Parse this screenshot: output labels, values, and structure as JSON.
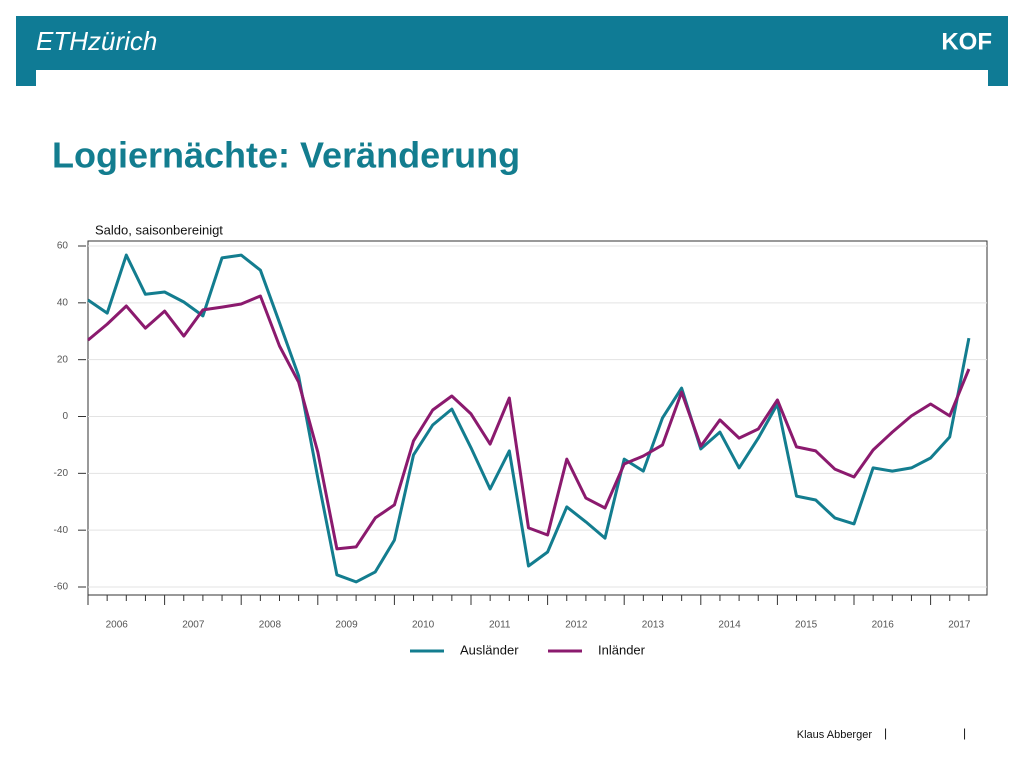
{
  "header": {
    "logo_left": "ETHzürich",
    "logo_right": "KOF"
  },
  "title": "Logiernächte: Veränderung",
  "chart_data": {
    "type": "line",
    "subtitle": "Saldo, saisonbereinigt",
    "year_labels": [
      "2006",
      "2007",
      "2008",
      "2009",
      "2010",
      "2011",
      "2012",
      "2013",
      "2014",
      "2015",
      "2016",
      "2017"
    ],
    "ylim": [
      -62,
      62
    ],
    "yticks": [
      -60,
      -40,
      -20,
      0,
      20,
      40,
      60
    ],
    "grid": true,
    "legend": "bottom",
    "series": [
      {
        "name": "Ausländer",
        "color": "#137d8f",
        "values": [
          41,
          36.4,
          56.8,
          43,
          43.8,
          40.3,
          35.4,
          55.8,
          56.8,
          51.5,
          33,
          14.3,
          -21.6,
          -55.7,
          -58.2,
          -54.7,
          -43.5,
          -13.5,
          -3,
          2.6,
          -11,
          -25.5,
          -12.1,
          -52.6,
          -47.7,
          -31.8,
          -37.1,
          -42.8,
          -15,
          -19.2,
          -0.5,
          10,
          -11.4,
          -5.5,
          -18.1,
          -7.6,
          4.4,
          -28,
          -29.4,
          -35.7,
          -37.8,
          -18.1,
          -19.2,
          -18.1,
          -14.6,
          -7.2,
          27.6
        ]
      },
      {
        "name": "Inländer",
        "color": "#8b1a6e",
        "values": [
          26.9,
          32.5,
          38.9,
          31.1,
          37.1,
          28.3,
          37.5,
          38.5,
          39.6,
          42.4,
          24.8,
          12.1,
          -12.5,
          -46.6,
          -45.9,
          -35.7,
          -31.1,
          -8.6,
          2.3,
          7.2,
          0.9,
          -9.7,
          6.5,
          -39.2,
          -41.7,
          -15,
          -28.7,
          -32.2,
          -16.7,
          -13.9,
          -10,
          8.6,
          -10.4,
          -1.2,
          -7.6,
          -4.4,
          5.8,
          -10.7,
          -12.1,
          -18.5,
          -21.3,
          -11.8,
          -5.5,
          0.2,
          4.4,
          0.2,
          16.7
        ]
      }
    ]
  },
  "footer": {
    "author": "Klaus Abberger",
    "separator": "|"
  }
}
